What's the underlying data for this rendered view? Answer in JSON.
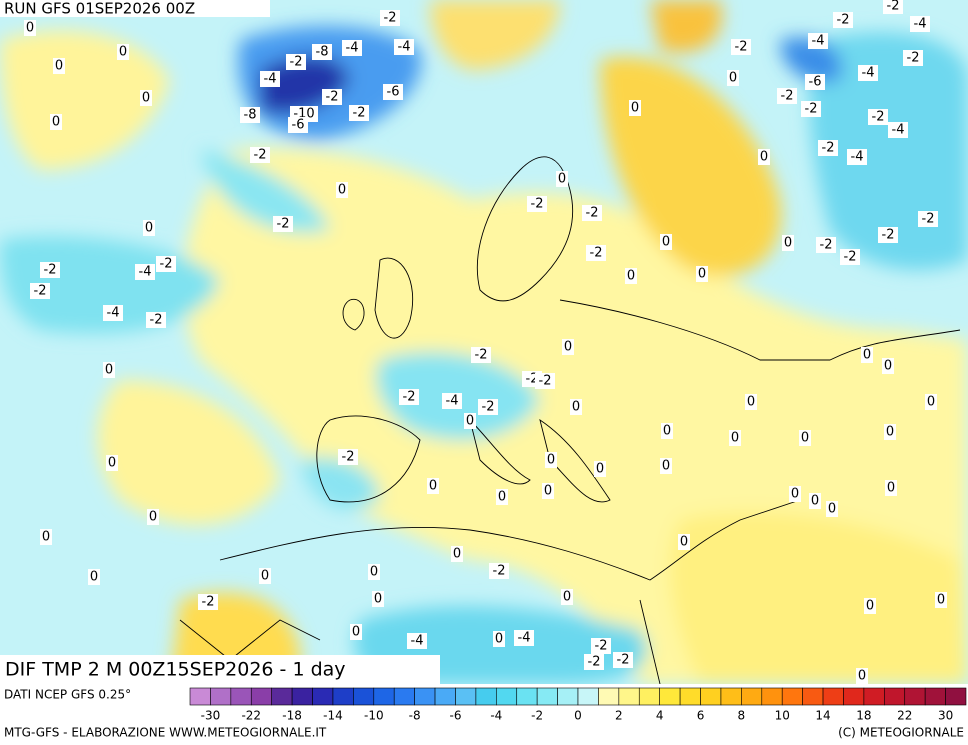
{
  "header": {
    "run": "RUN GFS 01SEP2026 00Z"
  },
  "map": {
    "title": "DIF TMP 2 M 00Z15SEP2026 - 1 day",
    "contour_labels": [
      "-2",
      "-2",
      "-2",
      "-4",
      "0",
      "-2",
      "-8",
      "-4",
      "-4",
      "-2",
      "-4",
      "-2",
      "-4",
      "-2",
      "-6",
      "-6",
      "-4",
      "-2",
      "-2",
      "-8",
      "-10",
      "-6",
      "-2",
      "-2",
      "-4",
      "-2",
      "-2",
      "-4",
      "0",
      "0",
      "0",
      "0",
      "0",
      "0",
      "0",
      "0",
      "-2",
      "-2",
      "-2",
      "0",
      "-2",
      "-2",
      "-2",
      "-2",
      "0",
      "0",
      "-2",
      "0",
      "0",
      "-2",
      "-4",
      "-2",
      "-2",
      "-4",
      "-2",
      "0",
      "-2",
      "0",
      "0",
      "0",
      "-2",
      "-2",
      "-2",
      "-4",
      "-2",
      "0",
      "0",
      "0",
      "0",
      "0",
      "0",
      "0",
      "0",
      "-2",
      "0",
      "0",
      "0",
      "0",
      "0",
      "0",
      "0",
      "0",
      "0",
      "0",
      "0",
      "0",
      "0",
      "0",
      "0",
      "0",
      "-2",
      "0",
      "0",
      "0",
      "-2",
      "0",
      "0",
      "0",
      "0",
      "0",
      "-4",
      "-2",
      "-4",
      "-2",
      "-2",
      "0",
      "0"
    ]
  },
  "colorbar": {
    "source": "DATI NCEP GFS 0.25°",
    "colors": [
      "#c98ad6",
      "#b070c8",
      "#9a55b8",
      "#8a3ea8",
      "#5a2a9a",
      "#3a22a0",
      "#2a2ab4",
      "#1e3ec8",
      "#1a52d8",
      "#1e66e6",
      "#2a7af0",
      "#3a92f4",
      "#4aaaf6",
      "#5ac0f4",
      "#46ccee",
      "#52d8f0",
      "#6ae2f2",
      "#86eaf4",
      "#a6f0f6",
      "#c8f6f8",
      "#fffab4",
      "#fff68a",
      "#fff060",
      "#ffe83a",
      "#ffdc2a",
      "#ffd020",
      "#ffbe18",
      "#ffaa12",
      "#ff920e",
      "#ff760e",
      "#f85a12",
      "#ee3e16",
      "#e0281c",
      "#d01c24",
      "#c0162c",
      "#b01434",
      "#a0123a",
      "#901040"
    ],
    "labels": [
      "-30",
      "-22",
      "-18",
      "-14",
      "-10",
      "-8",
      "-6",
      "-4",
      "-2",
      "0",
      "2",
      "4",
      "6",
      "8",
      "10",
      "14",
      "18",
      "22",
      "30"
    ]
  },
  "footer": {
    "left": "MTG-GFS - ELABORAZIONE WWW.METEOGIORNALE.IT",
    "right": "(C) METEOGIORNALE"
  }
}
